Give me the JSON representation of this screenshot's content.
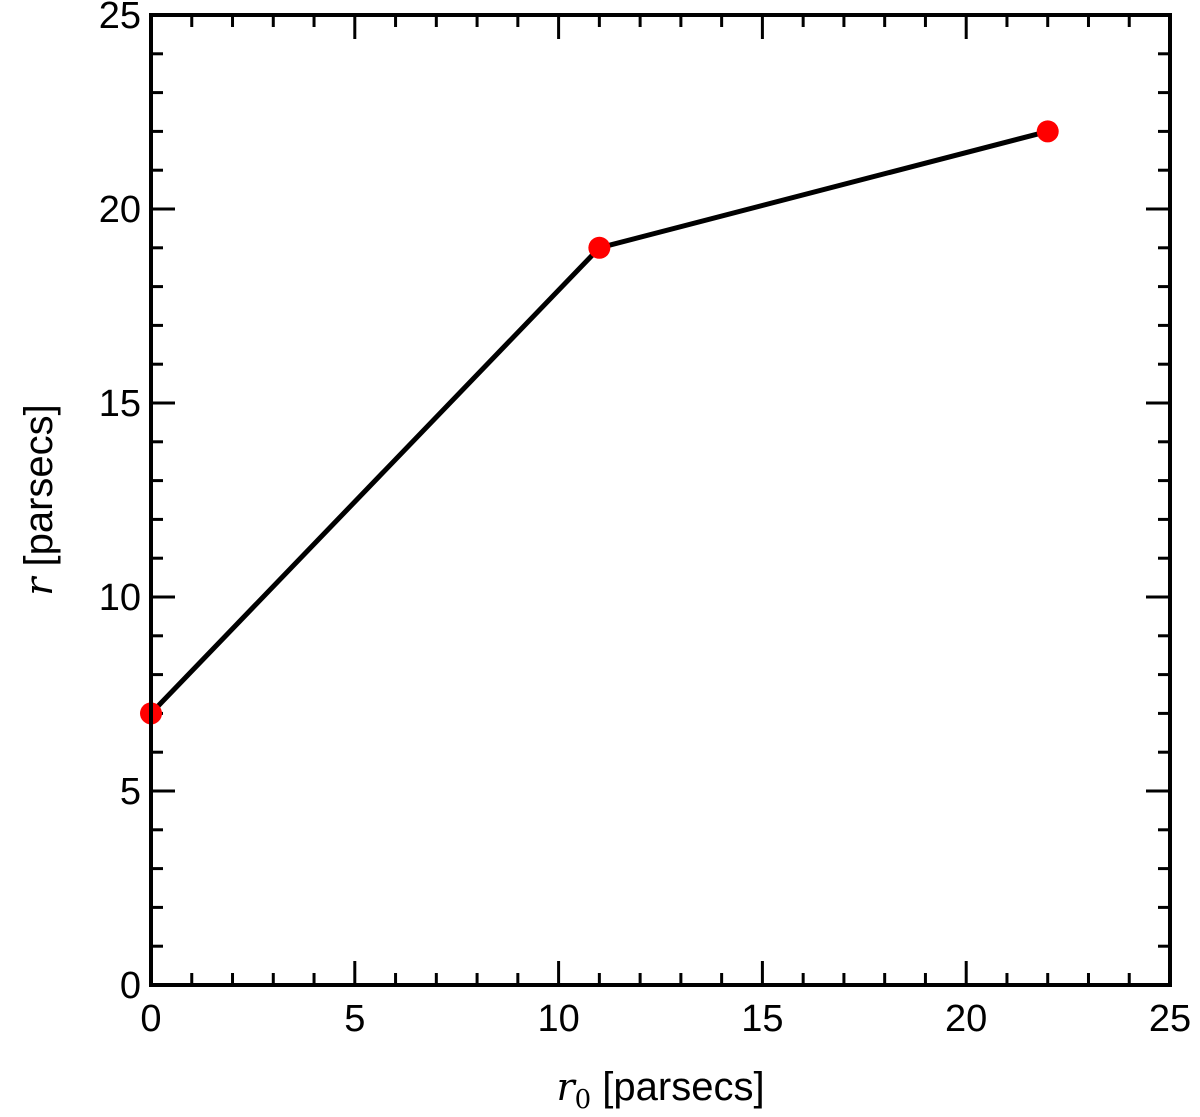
{
  "chart_data": {
    "type": "line",
    "xlabel": {
      "var": "r",
      "sub": "0",
      "text": " [parsecs]"
    },
    "ylabel": {
      "var": "r",
      "text": " [parsecs]"
    },
    "xlim": [
      0,
      25
    ],
    "ylim": [
      0,
      25
    ],
    "xticks": [
      0,
      5,
      10,
      15,
      20,
      25
    ],
    "yticks": [
      0,
      5,
      10,
      15,
      20,
      25
    ],
    "minor_tick_step": 1,
    "grid": false,
    "series": [
      {
        "x": [
          0,
          11,
          22
        ],
        "y": [
          7,
          19,
          22
        ],
        "line_color": "#000000",
        "marker_color": "#ff0000"
      }
    ]
  }
}
